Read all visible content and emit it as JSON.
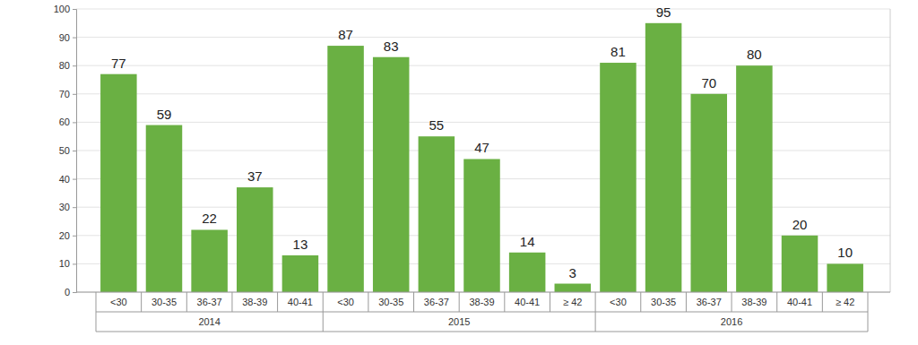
{
  "chart_data": {
    "type": "bar",
    "color": "#6ab043",
    "ylim": [
      0,
      100
    ],
    "yticks": [
      0,
      10,
      20,
      30,
      40,
      50,
      60,
      70,
      80,
      90,
      100
    ],
    "grid": true,
    "data_labels": true,
    "groups": [
      {
        "name": "2014",
        "categories": [
          "<30",
          "30-35",
          "36-37",
          "38-39",
          "40-41"
        ],
        "values": [
          77,
          59,
          22,
          37,
          13
        ]
      },
      {
        "name": "2015",
        "categories": [
          "<30",
          "30-35",
          "36-37",
          "38-39",
          "40-41",
          "≥ 42"
        ],
        "values": [
          87,
          83,
          55,
          47,
          14,
          3
        ]
      },
      {
        "name": "2016",
        "categories": [
          "<30",
          "30-35",
          "36-37",
          "38-39",
          "40-41",
          "≥ 42"
        ],
        "values": [
          81,
          95,
          70,
          80,
          20,
          10
        ]
      }
    ]
  }
}
